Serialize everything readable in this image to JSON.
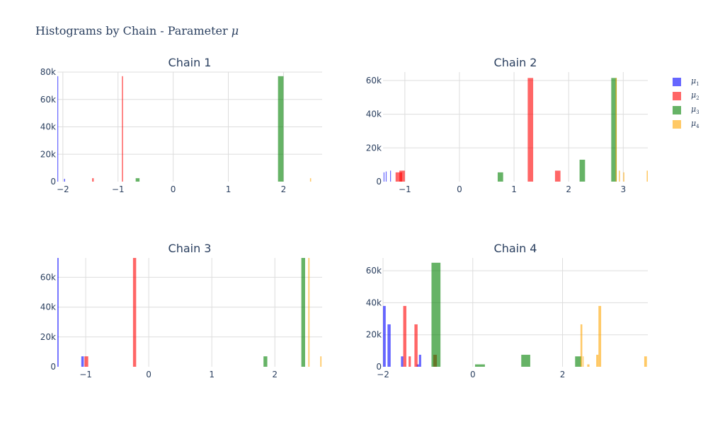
{
  "title": {
    "text": "Histograms by Chain - Parameter ",
    "symbol": "μ"
  },
  "colors": {
    "mu1": "#0000ff",
    "mu2": "#ff0000",
    "mu3": "#008000",
    "mu4": "#ffa500"
  },
  "legend": [
    {
      "sym": "μ",
      "sub": "1",
      "color_key": "mu1"
    },
    {
      "sym": "μ",
      "sub": "2",
      "color_key": "mu2"
    },
    {
      "sym": "μ",
      "sub": "3",
      "color_key": "mu3"
    },
    {
      "sym": "μ",
      "sub": "4",
      "color_key": "mu4"
    }
  ],
  "chart_data": [
    {
      "type": "bar",
      "title": "Chain 1",
      "xlim": [
        -2.1,
        2.7
      ],
      "ylim": [
        0,
        80000
      ],
      "xticks": [
        -2,
        -1,
        0,
        1,
        2
      ],
      "yticks": [
        0,
        20000,
        40000,
        60000,
        80000
      ],
      "ytick_labels": [
        "0",
        "20k",
        "40k",
        "60k",
        "80k"
      ],
      "series": [
        {
          "color_key": "mu1",
          "bars": [
            [
              -2.1,
              -2.09,
              77000
            ],
            [
              -1.98,
              -1.96,
              2000
            ]
          ]
        },
        {
          "color_key": "mu2",
          "bars": [
            [
              -1.47,
              -1.44,
              2500
            ],
            [
              -0.93,
              -0.91,
              77000
            ]
          ]
        },
        {
          "color_key": "mu3",
          "bars": [
            [
              -0.68,
              -0.61,
              2500
            ],
            [
              1.9,
              2.0,
              77000
            ]
          ]
        },
        {
          "color_key": "mu4",
          "bars": [
            [
              2.48,
              2.5,
              2500
            ]
          ]
        }
      ]
    },
    {
      "type": "bar",
      "title": "Chain 2",
      "xlim": [
        -1.4,
        3.45
      ],
      "ylim": [
        0,
        65000
      ],
      "xticks": [
        -1,
        0,
        1,
        2,
        3
      ],
      "yticks": [
        0,
        20000,
        40000,
        60000
      ],
      "ytick_labels": [
        "0",
        "20k",
        "40k",
        "60k"
      ],
      "series": [
        {
          "color_key": "mu1",
          "bars": [
            [
              -1.39,
              -1.38,
              5500
            ],
            [
              -1.35,
              -1.34,
              6000
            ],
            [
              -1.27,
              -1.26,
              6500
            ]
          ]
        },
        {
          "color_key": "mu2",
          "bars": [
            [
              -1.17,
              -1.05,
              5500
            ],
            [
              -1.1,
              -1.0,
              6500
            ],
            [
              1.25,
              1.35,
              61500
            ],
            [
              1.75,
              1.85,
              6500
            ]
          ]
        },
        {
          "color_key": "mu3",
          "bars": [
            [
              0.7,
              0.8,
              5500
            ],
            [
              2.2,
              2.3,
              13000
            ],
            [
              2.78,
              2.88,
              61500
            ]
          ]
        },
        {
          "color_key": "mu4",
          "bars": [
            [
              2.86,
              2.88,
              61500
            ],
            [
              2.92,
              2.94,
              6500
            ],
            [
              3.0,
              3.02,
              5500
            ],
            [
              3.43,
              3.45,
              6500
            ]
          ]
        }
      ]
    },
    {
      "type": "bar",
      "title": "Chain 3",
      "xlim": [
        -1.45,
        2.75
      ],
      "ylim": [
        0,
        73000
      ],
      "xticks": [
        -1,
        0,
        1,
        2
      ],
      "yticks": [
        0,
        20000,
        40000,
        60000
      ],
      "ytick_labels": [
        "0",
        "20k",
        "40k",
        "60k"
      ],
      "series": [
        {
          "color_key": "mu1",
          "bars": [
            [
              -1.45,
              -1.43,
              73000
            ],
            [
              -1.07,
              -1.03,
              7000
            ]
          ]
        },
        {
          "color_key": "mu2",
          "bars": [
            [
              -1.02,
              -0.96,
              7000
            ],
            [
              -0.25,
              -0.2,
              73000
            ]
          ]
        },
        {
          "color_key": "mu3",
          "bars": [
            [
              1.82,
              1.88,
              7000
            ],
            [
              2.42,
              2.48,
              73000
            ]
          ]
        },
        {
          "color_key": "mu4",
          "bars": [
            [
              2.53,
              2.55,
              73000
            ],
            [
              2.72,
              2.74,
              7000
            ]
          ]
        }
      ]
    },
    {
      "type": "bar",
      "title": "Chain 4",
      "xlim": [
        -2,
        3.9
      ],
      "ylim": [
        0,
        68000
      ],
      "xticks": [
        -2,
        0,
        2
      ],
      "yticks": [
        0,
        20000,
        40000,
        60000
      ],
      "ytick_labels": [
        "0",
        "20k",
        "40k",
        "60k"
      ],
      "series": [
        {
          "color_key": "mu1",
          "bars": [
            [
              -2.0,
              -1.94,
              38000
            ],
            [
              -1.9,
              -1.83,
              26500
            ],
            [
              -1.6,
              -1.55,
              6500
            ],
            [
              -1.25,
              -1.2,
              1500
            ],
            [
              -1.2,
              -1.15,
              7500
            ]
          ]
        },
        {
          "color_key": "mu2",
          "bars": [
            [
              -1.55,
              -1.48,
              38000
            ],
            [
              -1.43,
              -1.38,
              6500
            ],
            [
              -1.3,
              -1.23,
              26500
            ],
            [
              -0.88,
              -0.8,
              7500
            ]
          ]
        },
        {
          "color_key": "mu3",
          "bars": [
            [
              -0.92,
              -0.72,
              65000
            ],
            [
              0.05,
              0.27,
              1500
            ],
            [
              1.08,
              1.28,
              7500
            ],
            [
              2.28,
              2.42,
              6500
            ]
          ]
        },
        {
          "color_key": "mu4",
          "bars": [
            [
              2.4,
              2.44,
              26500
            ],
            [
              2.45,
              2.47,
              6500
            ],
            [
              2.55,
              2.6,
              1500
            ],
            [
              2.75,
              2.8,
              7500
            ],
            [
              2.8,
              2.86,
              38000
            ],
            [
              3.82,
              3.88,
              6500
            ]
          ]
        }
      ]
    }
  ]
}
